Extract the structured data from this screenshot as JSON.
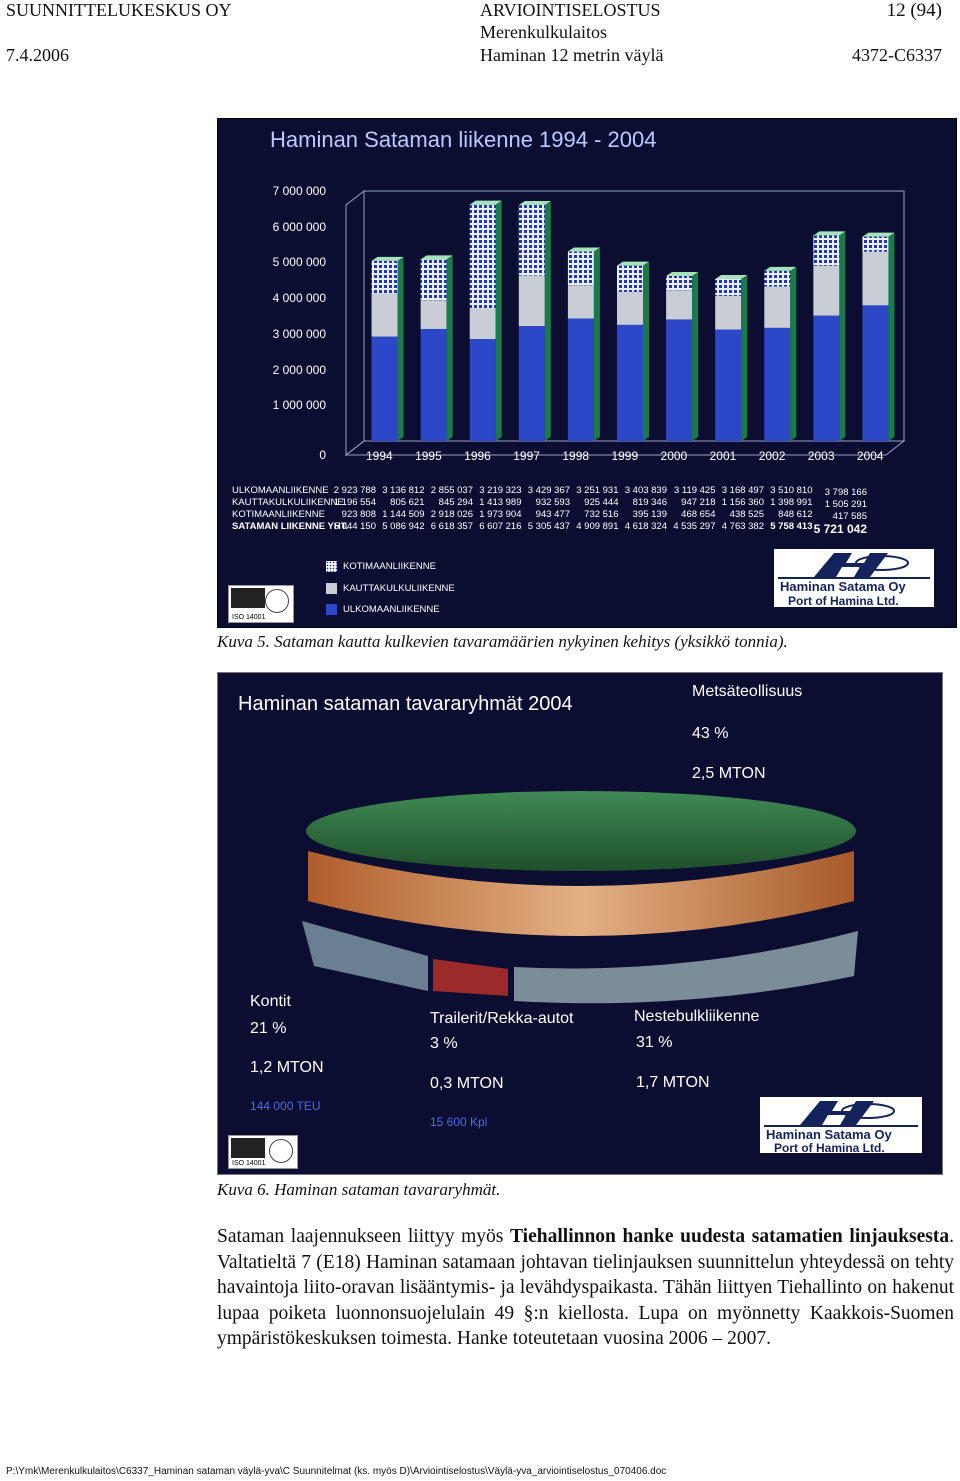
{
  "header": {
    "company": "SUUNNITTELUKESKUS OY",
    "doc_type": "ARVIOINTISELOSTUS",
    "page": "12 (94)",
    "date": "7.4.2006",
    "project_line1": "Merenkulkulaitos",
    "project_line2": "Haminan 12 metrin väylä",
    "code": "4372-C6337"
  },
  "figure1": {
    "title": "Haminan Sataman liikenne 1994 - 2004",
    "caption": "Kuva 5. Sataman kautta kulkevien tavaramäärien nykyinen kehitys (yksikkö tonnia).",
    "iso_text": "ISO 14001",
    "logo_line1": "Haminan Satama Oy",
    "logo_line2": "Port of Hamina Ltd.",
    "legend": [
      {
        "label": "KOTIMAANLIIKENNE",
        "color": "#2236b8"
      },
      {
        "label": "KAUTTAKULKULIIKENNE",
        "color": "#c8cdd6"
      },
      {
        "label": "ULKOMAANLIIKENNE",
        "color": "#2c48c8"
      }
    ]
  },
  "chart_data": {
    "type": "bar",
    "title": "Haminan Sataman liikenne 1994 - 2004",
    "categories": [
      "1994",
      "1995",
      "1996",
      "1997",
      "1998",
      "1999",
      "2000",
      "2001",
      "2002",
      "2003",
      "2004"
    ],
    "ylim": [
      0,
      7000000
    ],
    "yticks": [
      "7 000 000",
      "6 000 000",
      "5 000 000",
      "4 000 000",
      "3 000 000",
      "2 000 000",
      "1 000 000",
      "0"
    ],
    "series": [
      {
        "name": "ULKOMAANLIIKENNE",
        "values": [
          2923788,
          3136812,
          2855037,
          3219323,
          3429367,
          3251931,
          3403839,
          3119425,
          3168497,
          3510810,
          3798166
        ],
        "labels": [
          "2 923 788",
          "3 136 812",
          "2 855 037",
          "3 219 323",
          "3 429 367",
          "3 251 931",
          "3 403 839",
          "3 119 425",
          "3 168 497",
          "3 510 810",
          "3 798 166"
        ]
      },
      {
        "name": "KAUTTAKULKULIIKENNE",
        "values": [
          1196554,
          805621,
          845294,
          1413989,
          932593,
          925444,
          819346,
          947218,
          1156360,
          1398991,
          1505291
        ],
        "labels": [
          "1 196 554",
          "805 621",
          "845 294",
          "1 413 989",
          "932 593",
          "925 444",
          "819 346",
          "947 218",
          "1 156 360",
          "1 398 991",
          "1 505 291"
        ]
      },
      {
        "name": "KOTIMAANLIIKENNE",
        "values": [
          923808,
          1144509,
          2918026,
          1973904,
          943477,
          732516,
          395139,
          468654,
          438525,
          848612,
          417585
        ],
        "labels": [
          "923 808",
          "1 144 509",
          "2 918 026",
          "1 973 904",
          "943 477",
          "732 516",
          "395 139",
          "468 654",
          "438 525",
          "848 612",
          "417 585"
        ]
      },
      {
        "name": "SATAMAN LIIKENNE YHT.",
        "values": [
          5044150,
          5086942,
          6618357,
          6607216,
          5305437,
          4909891,
          4618324,
          4535297,
          4763382,
          5758413,
          5721042
        ],
        "labels": [
          "5 044 150",
          "5 086 942",
          "6 618 357",
          "6 607 216",
          "5 305 437",
          "4 909 891",
          "4 618 324",
          "4 535 297",
          "4 763 382",
          "5 758 413",
          "5 721 042"
        ]
      }
    ],
    "row_labels": [
      "ULKOMAANLIIKENNE",
      "KAUTTAKULKULIIKENNE",
      "KOTIMAANLIIKENNE",
      "SATAMAN LIIKENNE YHT."
    ]
  },
  "figure2": {
    "title": "Haminan sataman tavararyhmät 2004",
    "caption": "Kuva 6. Haminan sataman tavararyhmät.",
    "forest": {
      "name": "Metsäteollisuus",
      "pct": "43 %",
      "amount": "2,5 MTON"
    },
    "containers": {
      "name": "Kontit",
      "pct": "21 %",
      "amount": "1,2 MTON",
      "extra": "144 000 TEU"
    },
    "trailers": {
      "name": "Trailerit/Rekka-autot",
      "pct": "3 %",
      "amount": "0,3 MTON",
      "extra": "15 600 Kpl"
    },
    "liquid": {
      "name": "Nestebulkliikenne",
      "pct": "31 %",
      "amount": "1,7 MTON"
    },
    "iso_text": "ISO 14001",
    "logo_line1": "Haminan Satama Oy",
    "logo_line2": "Port of Hamina Ltd."
  },
  "body": {
    "p1": "Sataman laajennukseen liittyy myös ",
    "p1_bold": "Tiehallinnon hanke uudesta satamatien linjauksesta",
    "p1_rest": ". Valtatieltä 7 (E18) Haminan satamaan johtavan tielinjauksen suunnittelun yhteydessä on tehty havaintoja liito-oravan lisääntymis- ja levähdyspaikasta. Tähän liittyen Tiehallinto on hakenut lupaa poiketa luonnonsuojelulain 49 §:n kiellosta. Lupa on myönnetty Kaakkois-Suomen ympäristökeskuksen toimesta. Hanke toteutetaan vuosina 2006 – 2007."
  },
  "footer": "P:\\Ymk\\Merenkulkulaitos\\C6337_Haminan sataman väylä-yva\\C Suunnitelmat (ks. myös D)\\Arviointiselostus\\Väylä-yva_arviointiselostus_070406.doc"
}
